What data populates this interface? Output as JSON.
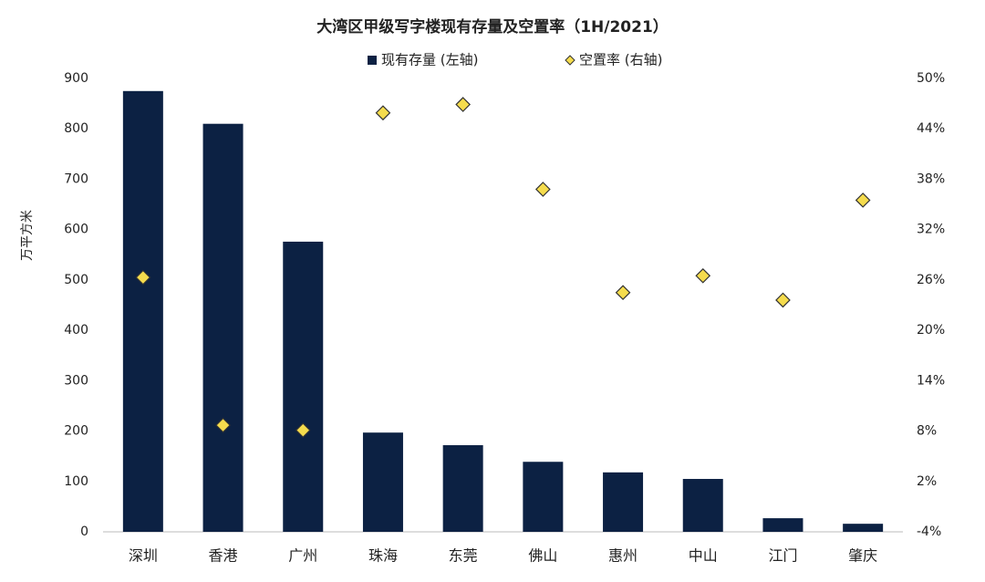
{
  "chart_data": {
    "type": "bar",
    "title": "大湾区甲级写字楼现有存量及空置率（1H/2021）",
    "y_label": "万平方米",
    "categories": [
      "深圳",
      "香港",
      "广州",
      "珠海",
      "东莞",
      "佛山",
      "惠州",
      "中山",
      "江门",
      "肇庆"
    ],
    "series": [
      {
        "name": "现有存量 (左轴)",
        "color": "#0c2143",
        "values": [
          875,
          810,
          576,
          197,
          172,
          139,
          118,
          105,
          27,
          16
        ]
      },
      {
        "name": "空置率 (右轴)",
        "color": "#f5dc4d",
        "axis": "y2",
        "marker": "diamond",
        "values": [
          26.3,
          8.7,
          8.1,
          45.9,
          46.9,
          36.8,
          24.5,
          26.5,
          23.6,
          35.5
        ]
      }
    ],
    "ylim": [
      0,
      900
    ],
    "yticks": [
      0,
      100,
      200,
      300,
      400,
      500,
      600,
      700,
      800,
      900
    ],
    "y2lim": [
      -4,
      50
    ],
    "y2ticks": [
      {
        "value": -4,
        "label": "-4%"
      },
      {
        "value": 2,
        "label": "2%"
      },
      {
        "value": 8,
        "label": "8%"
      },
      {
        "value": 14,
        "label": "14%"
      },
      {
        "value": 20,
        "label": "20%"
      },
      {
        "value": 26,
        "label": "26%"
      },
      {
        "value": 32,
        "label": "32%"
      },
      {
        "value": 38,
        "label": "38%"
      },
      {
        "value": 44,
        "label": "44%"
      },
      {
        "value": 50,
        "label": "50%"
      }
    ],
    "grid": false,
    "legend": "top"
  }
}
